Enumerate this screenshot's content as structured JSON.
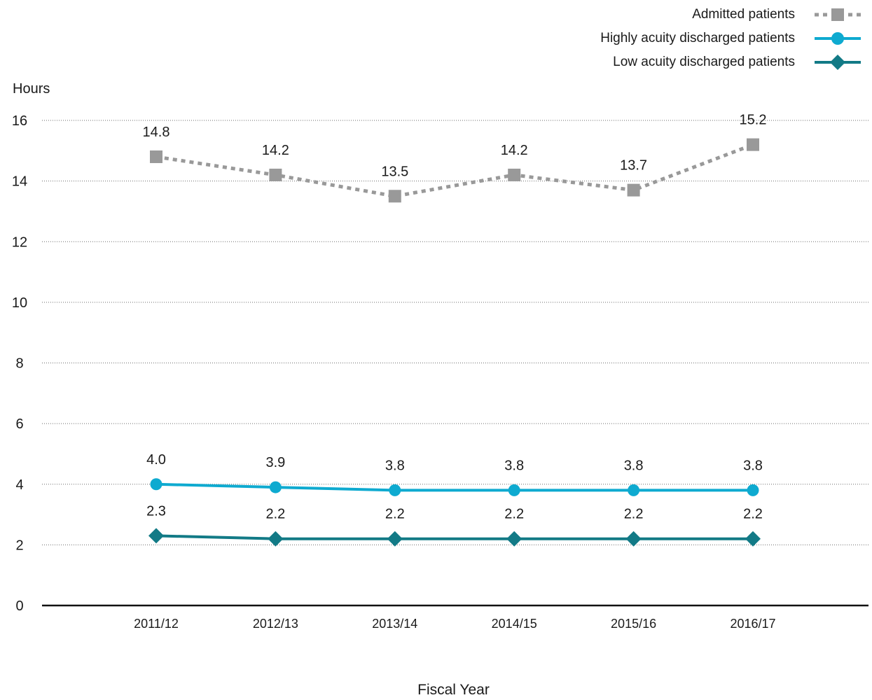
{
  "chart_data": {
    "type": "line",
    "ylabel": "Hours",
    "xlabel": "Fiscal Year",
    "categories": [
      "2011/12",
      "2012/13",
      "2013/14",
      "2014/15",
      "2015/16",
      "2016/17"
    ],
    "ylim": [
      0,
      16
    ],
    "yticks": [
      0,
      2,
      4,
      6,
      8,
      10,
      12,
      14,
      16
    ],
    "grid": true,
    "legend_position": "top-right",
    "series": [
      {
        "name": "Admitted patients",
        "values": [
          14.8,
          14.2,
          13.5,
          14.2,
          13.7,
          15.2
        ],
        "labels": [
          "14.8",
          "14.2",
          "13.5",
          "14.2",
          "13.7",
          "15.2"
        ],
        "color": "#999999",
        "marker": "square",
        "line": "dotted"
      },
      {
        "name": "Highly acuity discharged patients",
        "values": [
          4.0,
          3.9,
          3.8,
          3.8,
          3.8,
          3.8
        ],
        "labels": [
          "4.0",
          "3.9",
          "3.8",
          "3.8",
          "3.8",
          "3.8"
        ],
        "color": "#0eaad0",
        "marker": "circle",
        "line": "solid"
      },
      {
        "name": "Low acuity discharged patients",
        "values": [
          2.3,
          2.2,
          2.2,
          2.2,
          2.2,
          2.2
        ],
        "labels": [
          "2.3",
          "2.2",
          "2.2",
          "2.2",
          "2.2",
          "2.2"
        ],
        "color": "#127a86",
        "marker": "diamond",
        "line": "solid"
      }
    ]
  }
}
